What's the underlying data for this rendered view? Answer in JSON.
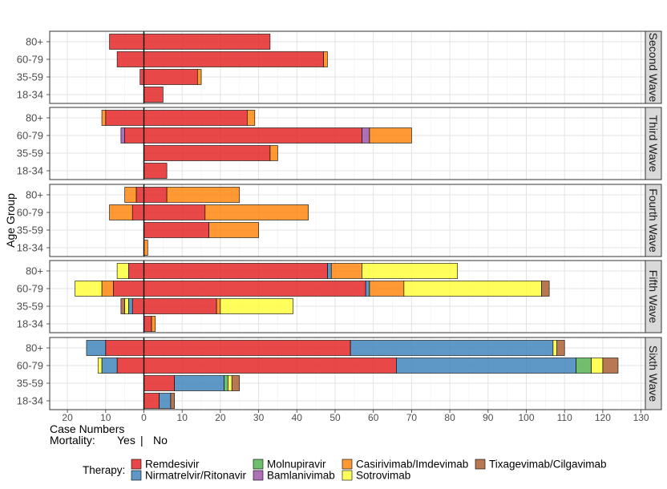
{
  "chart_data": {
    "type": "bar",
    "orientation": "horizontal",
    "stacked": true,
    "ylabel": "Age Group",
    "xlabel": "Case Numbers",
    "xlabel_line2_parts": [
      "Mortality:",
      "Yes",
      "|",
      "No"
    ],
    "x_ticks": [
      "20",
      "10",
      "0",
      "10",
      "20",
      "30",
      "40",
      "50",
      "60",
      "70",
      "80",
      "90",
      "100",
      "110",
      "120",
      "130"
    ],
    "xlim": [
      -25,
      130
    ],
    "grid": true,
    "legend_title": "Therapy:",
    "legend_position": "bottom",
    "categories": [
      "80+",
      "60-79",
      "35-59",
      "18-34"
    ],
    "series": [
      {
        "name": "Remdesivir",
        "color": "#E41A1C"
      },
      {
        "name": "Nirmatrelvir/Ritonavir",
        "color": "#377EB8"
      },
      {
        "name": "Molnupiravir",
        "color": "#4DAF4A"
      },
      {
        "name": "Bamlanivimab",
        "color": "#984EA3"
      },
      {
        "name": "Casirivimab/Imdevimab",
        "color": "#FF7F00"
      },
      {
        "name": "Sotrovimab",
        "color": "#FFFF33"
      },
      {
        "name": "Tixagevimab/Cilgavimab",
        "color": "#A65628"
      }
    ],
    "panels": [
      {
        "label": "Second Wave",
        "rows": [
          {
            "age": "80+",
            "yes": [
              [
                "Remdesivir",
                9
              ]
            ],
            "no": [
              [
                "Remdesivir",
                33
              ]
            ]
          },
          {
            "age": "60-79",
            "yes": [
              [
                "Remdesivir",
                7
              ]
            ],
            "no": [
              [
                "Remdesivir",
                47
              ],
              [
                "Casirivimab/Imdevimab",
                1
              ]
            ]
          },
          {
            "age": "35-59",
            "yes": [
              [
                "Remdesivir",
                1
              ]
            ],
            "no": [
              [
                "Remdesivir",
                14
              ],
              [
                "Casirivimab/Imdevimab",
                1
              ]
            ]
          },
          {
            "age": "18-34",
            "yes": [],
            "no": [
              [
                "Remdesivir",
                5
              ]
            ]
          }
        ]
      },
      {
        "label": "Third Wave",
        "rows": [
          {
            "age": "80+",
            "yes": [
              [
                "Remdesivir",
                10
              ],
              [
                "Casirivimab/Imdevimab",
                1
              ]
            ],
            "no": [
              [
                "Remdesivir",
                27
              ],
              [
                "Casirivimab/Imdevimab",
                2
              ]
            ]
          },
          {
            "age": "60-79",
            "yes": [
              [
                "Remdesivir",
                5
              ],
              [
                "Bamlanivimab",
                1
              ]
            ],
            "no": [
              [
                "Remdesivir",
                57
              ],
              [
                "Bamlanivimab",
                2
              ],
              [
                "Casirivimab/Imdevimab",
                11
              ]
            ]
          },
          {
            "age": "35-59",
            "yes": [],
            "no": [
              [
                "Remdesivir",
                33
              ],
              [
                "Casirivimab/Imdevimab",
                2
              ]
            ]
          },
          {
            "age": "18-34",
            "yes": [],
            "no": [
              [
                "Remdesivir",
                6
              ]
            ]
          }
        ]
      },
      {
        "label": "Fourth Wave",
        "rows": [
          {
            "age": "80+",
            "yes": [
              [
                "Remdesivir",
                2
              ],
              [
                "Casirivimab/Imdevimab",
                3
              ]
            ],
            "no": [
              [
                "Remdesivir",
                6
              ],
              [
                "Casirivimab/Imdevimab",
                19
              ]
            ]
          },
          {
            "age": "60-79",
            "yes": [
              [
                "Remdesivir",
                3
              ],
              [
                "Casirivimab/Imdevimab",
                6
              ]
            ],
            "no": [
              [
                "Remdesivir",
                16
              ],
              [
                "Casirivimab/Imdevimab",
                27
              ]
            ]
          },
          {
            "age": "35-59",
            "yes": [],
            "no": [
              [
                "Remdesivir",
                17
              ],
              [
                "Casirivimab/Imdevimab",
                13
              ]
            ]
          },
          {
            "age": "18-34",
            "yes": [],
            "no": [
              [
                "Casirivimab/Imdevimab",
                1
              ]
            ]
          }
        ]
      },
      {
        "label": "Fifth Wave",
        "rows": [
          {
            "age": "80+",
            "yes": [
              [
                "Remdesivir",
                4
              ],
              [
                "Sotrovimab",
                3
              ]
            ],
            "no": [
              [
                "Remdesivir",
                48
              ],
              [
                "Nirmatrelvir/Ritonavir",
                1
              ],
              [
                "Casirivimab/Imdevimab",
                8
              ],
              [
                "Sotrovimab",
                25
              ]
            ]
          },
          {
            "age": "60-79",
            "yes": [
              [
                "Remdesivir",
                8
              ],
              [
                "Casirivimab/Imdevimab",
                3
              ],
              [
                "Sotrovimab",
                7
              ]
            ],
            "no": [
              [
                "Remdesivir",
                58
              ],
              [
                "Nirmatrelvir/Ritonavir",
                1
              ],
              [
                "Casirivimab/Imdevimab",
                9
              ],
              [
                "Sotrovimab",
                36
              ],
              [
                "Tixagevimab/Cilgavimab",
                2
              ]
            ]
          },
          {
            "age": "35-59",
            "yes": [
              [
                "Remdesivir",
                3
              ],
              [
                "Nirmatrelvir/Ritonavir",
                1
              ],
              [
                "Sotrovimab",
                1
              ],
              [
                "Tixagevimab/Cilgavimab",
                1
              ]
            ],
            "no": [
              [
                "Remdesivir",
                19
              ],
              [
                "Casirivimab/Imdevimab",
                1
              ],
              [
                "Sotrovimab",
                19
              ]
            ]
          },
          {
            "age": "18-34",
            "yes": [],
            "no": [
              [
                "Remdesivir",
                2
              ],
              [
                "Casirivimab/Imdevimab",
                1
              ]
            ]
          }
        ]
      },
      {
        "label": "Sixth Wave",
        "rows": [
          {
            "age": "80+",
            "yes": [
              [
                "Remdesivir",
                10
              ],
              [
                "Nirmatrelvir/Ritonavir",
                5
              ]
            ],
            "no": [
              [
                "Remdesivir",
                54
              ],
              [
                "Nirmatrelvir/Ritonavir",
                53
              ],
              [
                "Sotrovimab",
                1
              ],
              [
                "Tixagevimab/Cilgavimab",
                2
              ]
            ]
          },
          {
            "age": "60-79",
            "yes": [
              [
                "Remdesivir",
                7
              ],
              [
                "Nirmatrelvir/Ritonavir",
                4
              ],
              [
                "Sotrovimab",
                1
              ]
            ],
            "no": [
              [
                "Remdesivir",
                66
              ],
              [
                "Nirmatrelvir/Ritonavir",
                47
              ],
              [
                "Molnupiravir",
                4
              ],
              [
                "Sotrovimab",
                3
              ],
              [
                "Tixagevimab/Cilgavimab",
                4
              ]
            ]
          },
          {
            "age": "35-59",
            "yes": [],
            "no": [
              [
                "Remdesivir",
                8
              ],
              [
                "Nirmatrelvir/Ritonavir",
                13
              ],
              [
                "Molnupiravir",
                1
              ],
              [
                "Sotrovimab",
                1
              ],
              [
                "Tixagevimab/Cilgavimab",
                2
              ]
            ]
          },
          {
            "age": "18-34",
            "yes": [],
            "no": [
              [
                "Remdesivir",
                4
              ],
              [
                "Nirmatrelvir/Ritonavir",
                3
              ],
              [
                "Tixagevimab/Cilgavimab",
                1
              ]
            ]
          }
        ]
      }
    ]
  }
}
